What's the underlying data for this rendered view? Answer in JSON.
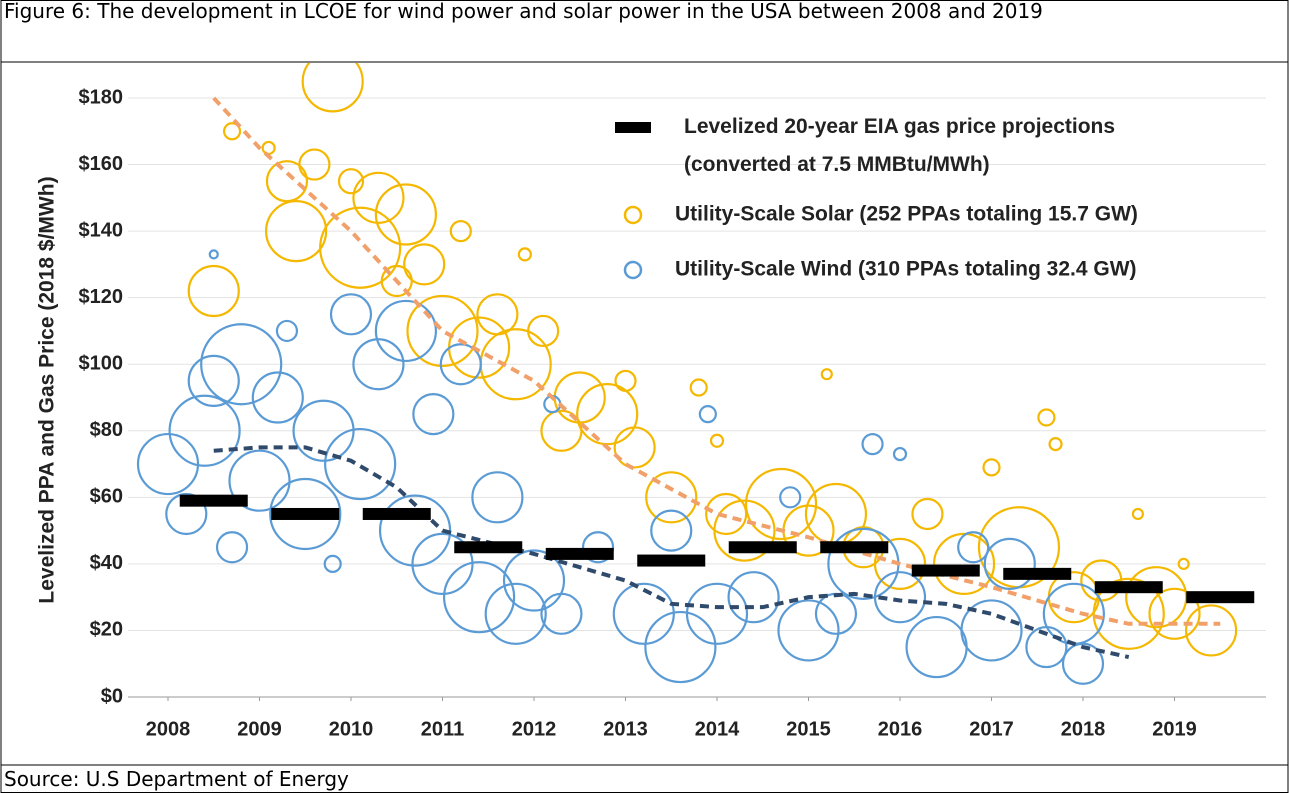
{
  "caption": "Figure 6: The development in LCOE for wind power and solar power in the USA between 2008 and 2019",
  "source": "Source: U.S Department of Energy",
  "chart_data": {
    "type": "scatter",
    "ylabel": "Levelized PPA and Gas Price (2018 $/MWh)",
    "xlim": [
      2008,
      2020
    ],
    "xticks": [
      2008,
      2009,
      2010,
      2011,
      2012,
      2013,
      2014,
      2015,
      2016,
      2017,
      2018,
      2019
    ],
    "ylim": [
      0,
      180
    ],
    "yticks": [
      {
        "value": 0,
        "label": "$0"
      },
      {
        "value": 20,
        "label": "$20"
      },
      {
        "value": 40,
        "label": "$40"
      },
      {
        "value": 60,
        "label": "$60"
      },
      {
        "value": 80,
        "label": "$80"
      },
      {
        "value": 100,
        "label": "$100"
      },
      {
        "value": 120,
        "label": "$120"
      },
      {
        "value": 140,
        "label": "$140"
      },
      {
        "value": 160,
        "label": "$160"
      },
      {
        "value": 180,
        "label": "$180"
      }
    ],
    "grid": true,
    "gas": {
      "name": "Levelized 20-year EIA gas price projections (converted at 7.5 MMBtu/MWh)",
      "color": "#000000",
      "x": [
        2008.5,
        2009.5,
        2010.5,
        2011.5,
        2012.5,
        2013.5,
        2014.5,
        2015.5,
        2016.5,
        2017.5,
        2018.5,
        2019.5
      ],
      "values": [
        59,
        55,
        55,
        45,
        43,
        41,
        45,
        45,
        38,
        37,
        33,
        30
      ]
    },
    "series": [
      {
        "name": "Utility-Scale Solar (252 PPAs totaling 15.7 GW)",
        "color": "#f5b800",
        "trend_color": "#f2a06a",
        "x": [
          2008.5,
          2008.7,
          2009.1,
          2009.3,
          2009.4,
          2009.6,
          2009.8,
          2010.0,
          2010.1,
          2010.3,
          2010.5,
          2010.6,
          2010.8,
          2011.0,
          2011.2,
          2011.4,
          2011.6,
          2011.8,
          2011.9,
          2012.1,
          2012.3,
          2012.5,
          2012.8,
          2013.0,
          2013.1,
          2013.5,
          2013.8,
          2014.0,
          2014.1,
          2014.3,
          2014.7,
          2015.0,
          2015.2,
          2015.3,
          2015.6,
          2016.0,
          2016.3,
          2016.7,
          2017.0,
          2017.3,
          2017.6,
          2017.7,
          2017.9,
          2018.2,
          2018.5,
          2018.6,
          2018.8,
          2019.0,
          2019.1,
          2019.4
        ],
        "values": [
          122,
          170,
          165,
          155,
          140,
          160,
          185,
          155,
          135,
          150,
          125,
          145,
          130,
          110,
          140,
          105,
          115,
          100,
          133,
          110,
          80,
          90,
          85,
          95,
          75,
          60,
          93,
          77,
          55,
          50,
          58,
          50,
          97,
          55,
          45,
          40,
          55,
          40,
          69,
          45,
          84,
          76,
          30,
          35,
          25,
          55,
          30,
          25,
          40,
          20
        ],
        "sizes": [
          25,
          8,
          6,
          20,
          30,
          15,
          30,
          12,
          40,
          25,
          15,
          30,
          20,
          35,
          10,
          30,
          20,
          35,
          6,
          15,
          20,
          25,
          30,
          10,
          20,
          25,
          8,
          6,
          20,
          30,
          35,
          25,
          5,
          30,
          20,
          25,
          15,
          30,
          8,
          40,
          8,
          6,
          25,
          20,
          35,
          5,
          30,
          25,
          5,
          25
        ],
        "trend_x": [
          2008.5,
          2009,
          2010,
          2011,
          2012,
          2013,
          2014,
          2015,
          2016,
          2017,
          2018,
          2018.5,
          2019.5
        ],
        "trend": [
          180,
          165,
          140,
          110,
          95,
          70,
          55,
          48,
          40,
          33,
          25,
          22,
          22
        ]
      },
      {
        "name": "Utility-Scale Wind (310 PPAs totaling 32.4 GW)",
        "color": "#5b9bd5",
        "trend_color": "#2f4a6b",
        "x": [
          2008.0,
          2008.2,
          2008.4,
          2008.5,
          2008.5,
          2008.7,
          2008.8,
          2009.0,
          2009.2,
          2009.3,
          2009.5,
          2009.7,
          2009.8,
          2010.0,
          2010.1,
          2010.3,
          2010.6,
          2010.7,
          2010.9,
          2011.0,
          2011.2,
          2011.4,
          2011.6,
          2011.8,
          2012.0,
          2012.2,
          2012.3,
          2012.7,
          2013.2,
          2013.5,
          2013.6,
          2013.9,
          2014.0,
          2014.4,
          2014.8,
          2015.0,
          2015.3,
          2015.6,
          2015.7,
          2016.0,
          2016.0,
          2016.4,
          2016.8,
          2017.0,
          2017.2,
          2017.6,
          2017.9,
          2018.0
        ],
        "values": [
          70,
          55,
          80,
          95,
          133,
          45,
          100,
          65,
          90,
          110,
          55,
          80,
          40,
          115,
          70,
          100,
          110,
          50,
          85,
          40,
          100,
          30,
          60,
          25,
          35,
          88,
          25,
          45,
          25,
          50,
          15,
          85,
          25,
          30,
          60,
          20,
          25,
          40,
          76,
          30,
          73,
          15,
          45,
          20,
          40,
          15,
          25,
          10
        ],
        "sizes": [
          30,
          20,
          35,
          25,
          4,
          15,
          40,
          30,
          25,
          10,
          35,
          30,
          8,
          20,
          35,
          25,
          30,
          35,
          20,
          30,
          20,
          35,
          25,
          30,
          30,
          8,
          20,
          15,
          30,
          20,
          35,
          8,
          30,
          25,
          10,
          30,
          20,
          35,
          10,
          25,
          6,
          30,
          15,
          30,
          25,
          20,
          30,
          20
        ],
        "trend_x": [
          2008.5,
          2009,
          2009.5,
          2010,
          2010.5,
          2011,
          2012,
          2013,
          2013.5,
          2014,
          2014.5,
          2015,
          2015.5,
          2016,
          2016.5,
          2017,
          2018,
          2018.5
        ],
        "trend": [
          74,
          75,
          75,
          71,
          63,
          50,
          43,
          35,
          28,
          27,
          27,
          30,
          31,
          29,
          28,
          25,
          15,
          12
        ]
      }
    ]
  }
}
